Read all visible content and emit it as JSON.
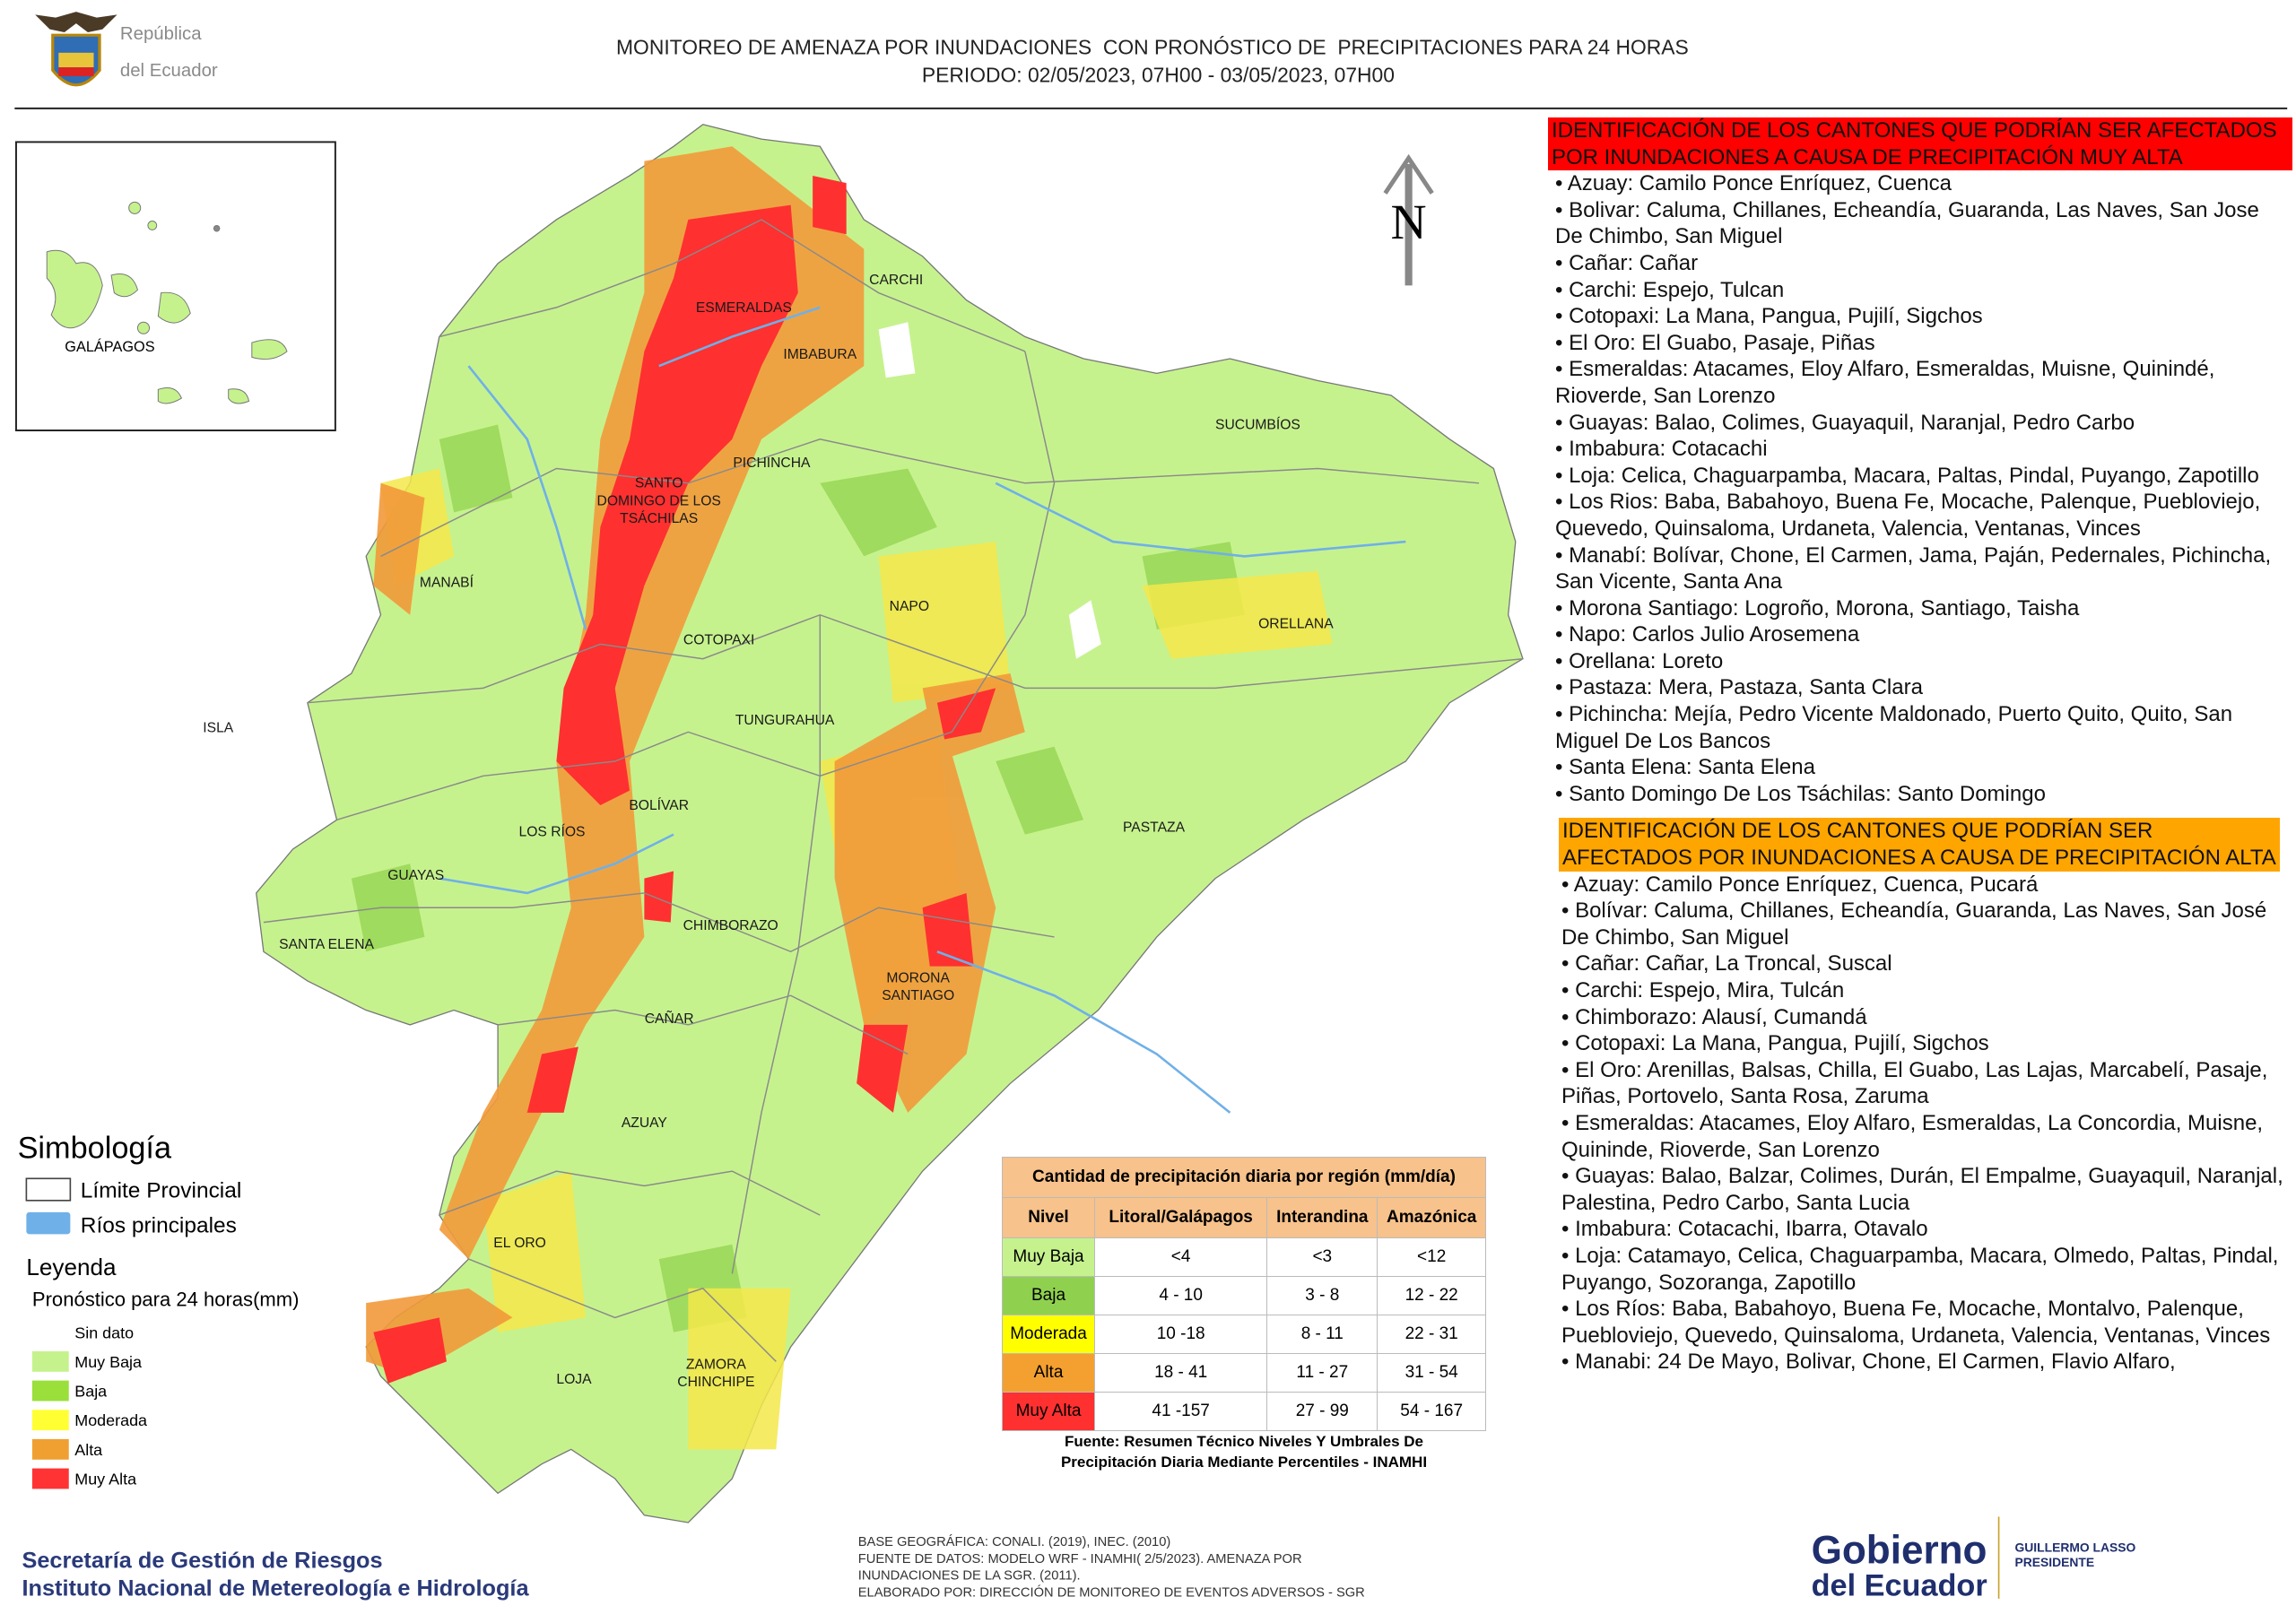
{
  "header": {
    "logo_text": [
      "República",
      "del Ecuador"
    ],
    "title": "MONITOREO DE AMENAZA POR INUNDACIONES  CON PRONÓSTICO DE  PRECIPITACIONES PARA 24 HORAS",
    "subtitle": "PERIODO: 02/05/2023, 07H00 - 03/05/2023, 07H00"
  },
  "map": {
    "inset_label": "GALÁPAGOS",
    "north": "N",
    "provinces": [
      {
        "lines": [
          "CARCHI"
        ]
      },
      {
        "lines": [
          "ESMERALDAS"
        ]
      },
      {
        "lines": [
          "IMBABURA"
        ]
      },
      {
        "lines": [
          "SUCUMBÍOS"
        ]
      },
      {
        "lines": [
          "PICHINCHA"
        ]
      },
      {
        "lines": [
          "SANTO",
          "DOMINGO DE LOS",
          "TSÁCHILAS"
        ]
      },
      {
        "lines": [
          "MANABÍ"
        ]
      },
      {
        "lines": [
          "NAPO"
        ]
      },
      {
        "lines": [
          "ORELLANA"
        ]
      },
      {
        "lines": [
          "COTOPAXI"
        ]
      },
      {
        "lines": [
          "TUNGURAHUA"
        ]
      },
      {
        "lines": [
          "ISLA"
        ]
      },
      {
        "lines": [
          "BOLÍVAR"
        ]
      },
      {
        "lines": [
          "LOS RÍOS"
        ]
      },
      {
        "lines": [
          "PASTAZA"
        ]
      },
      {
        "lines": [
          "GUAYAS"
        ]
      },
      {
        "lines": [
          "CHIMBORAZO"
        ]
      },
      {
        "lines": [
          "SANTA ELENA"
        ]
      },
      {
        "lines": [
          "MORONA",
          "SANTIAGO"
        ]
      },
      {
        "lines": [
          "CAÑAR"
        ]
      },
      {
        "lines": [
          "AZUAY"
        ]
      },
      {
        "lines": [
          "EL ORO"
        ]
      },
      {
        "lines": [
          "LOJA"
        ]
      },
      {
        "lines": [
          "ZAMORA",
          "CHINCHIPE"
        ]
      }
    ]
  },
  "symbology": {
    "title": "Simbología",
    "items": [
      "Límite Provincial",
      "Ríos principales"
    ],
    "legend_title": "Leyenda",
    "legend_subtitle": "Pronóstico para 24 horas(mm)",
    "levels": [
      "Sin dato",
      "Muy Baja",
      "Baja",
      "Moderada",
      "Alta",
      "Muy Alta"
    ]
  },
  "table": {
    "title": "Cantidad de precipitación diaria por región (mm/día)",
    "columns": [
      "Nivel",
      "Litoral/Galápagos",
      "Interandina",
      "Amazónica"
    ],
    "rows": [
      [
        "Muy Baja",
        "<4",
        "<3",
        "<12"
      ],
      [
        "Baja",
        "4 - 10",
        "3 - 8",
        "12 - 22"
      ],
      [
        "Moderada",
        "10 -18",
        "8 - 11",
        "22 - 31"
      ],
      [
        "Alta",
        "18 - 41",
        "11 - 27",
        "31 - 54"
      ],
      [
        "Muy Alta",
        "41 -157",
        "27 - 99",
        "54 - 167"
      ]
    ],
    "source": [
      "Fuente: Resumen Técnico Niveles Y Umbrales De",
      "Precipitación Diaria Mediante Percentiles - INAMHI"
    ]
  },
  "panel": {
    "very_high": {
      "title": "IDENTIFICACIÓN DE LOS CANTONES QUE PODRÍAN SER AFECTADOS POR INUNDACIONES  A CAUSA DE PRECIPITACIÓN MUY ALTA",
      "items": [
        "• Azuay: Camilo Ponce Enríquez, Cuenca",
        "• Bolivar: Caluma, Chillanes, Echeandía, Guaranda, Las Naves, San Jose De Chimbo, San Miguel",
        "• Cañar: Cañar",
        "• Carchi: Espejo, Tulcan",
        "• Cotopaxi: La Mana, Pangua, Pujilí, Sigchos",
        "• El Oro: El Guabo, Pasaje, Piñas",
        "• Esmeraldas: Atacames, Eloy Alfaro, Esmeraldas, Muisne, Quinindé, Rioverde, San Lorenzo",
        "• Guayas: Balao, Colimes, Guayaquil, Naranjal, Pedro Carbo",
        "• Imbabura: Cotacachi",
        "• Loja: Celica, Chaguarpamba, Macara, Paltas, Pindal, Puyango, Zapotillo",
        "• Los Rios: Baba, Babahoyo, Buena Fe, Mocache, Palenque, Puebloviejo, Quevedo, Quinsaloma, Urdaneta, Valencia, Ventanas, Vinces",
        "• Manabí: Bolívar, Chone, El Carmen, Jama, Paján, Pedernales, Pichincha, San Vicente, Santa Ana",
        "• Morona Santiago: Logroño, Morona, Santiago, Taisha",
        "• Napo: Carlos Julio Arosemena",
        "• Orellana: Loreto",
        "• Pastaza: Mera, Pastaza, Santa Clara",
        "• Pichincha: Mejía, Pedro Vicente Maldonado, Puerto Quito, Quito, San Miguel De Los Bancos",
        "• Santa Elena: Santa Elena",
        "• Santo Domingo De Los Tsáchilas: Santo Domingo"
      ]
    },
    "high": {
      "title": "IDENTIFICACIÓN DE LOS CANTONES QUE  PODRÍAN SER AFECTADOS POR INUNDACIONES  A CAUSA DE PRECIPITACIÓN ALTA",
      "items": [
        "• Azuay: Camilo Ponce Enríquez, Cuenca, Pucará",
        "• Bolívar: Caluma, Chillanes, Echeandía, Guaranda, Las Naves, San José De Chimbo, San Miguel",
        "• Cañar: Cañar, La Troncal, Suscal",
        "• Carchi: Espejo, Mira, Tulcán",
        "• Chimborazo: Alausí, Cumandá",
        "• Cotopaxi: La Mana, Pangua, Pujilí, Sigchos",
        "• El Oro: Arenillas, Balsas, Chilla, El Guabo, Las Lajas, Marcabelí, Pasaje, Piñas, Portovelo, Santa Rosa, Zaruma",
        "• Esmeraldas: Atacames, Eloy Alfaro, Esmeraldas, La Concordia, Muisne, Quininde, Rioverde, San Lorenzo",
        "• Guayas: Balao, Balzar, Colimes, Durán, El Empalme, Guayaquil, Naranjal, Palestina, Pedro Carbo, Santa Lucia",
        "• Imbabura: Cotacachi, Ibarra, Otavalo",
        "• Loja: Catamayo, Celica, Chaguarpamba, Macara, Olmedo, Paltas, Pindal, Puyango, Sozoranga, Zapotillo",
        "• Los Ríos: Baba, Babahoyo, Buena Fe, Mocache, Montalvo, Palenque, Puebloviejo, Quevedo, Quinsaloma, Urdaneta, Valencia, Ventanas, Vinces",
        "• Manabi: 24 De Mayo, Bolivar, Chone, El Carmen, Flavio Alfaro,"
      ]
    }
  },
  "footer": {
    "agency_lines": [
      "Secretaría de Gestión de Riesgos",
      "Instituto Nacional de Metereología e Hidrología"
    ],
    "credits": [
      "BASE GEOGRÁFICA: CONALI. (2019), INEC. (2010)",
      "FUENTE DE DATOS: MODELO WRF - INAMHI( 2/5/2023).  AMENAZA POR",
      "INUNDACIONES DE LA SGR. (2011).",
      "ELABORADO POR: DIRECCIÓN DE MONITOREO DE EVENTOS ADVERSOS - SGR"
    ],
    "gov_logo": [
      "Gobierno",
      "del Ecuador"
    ],
    "president": [
      "GUILLERMO LASSO",
      "PRESIDENTE"
    ]
  }
}
